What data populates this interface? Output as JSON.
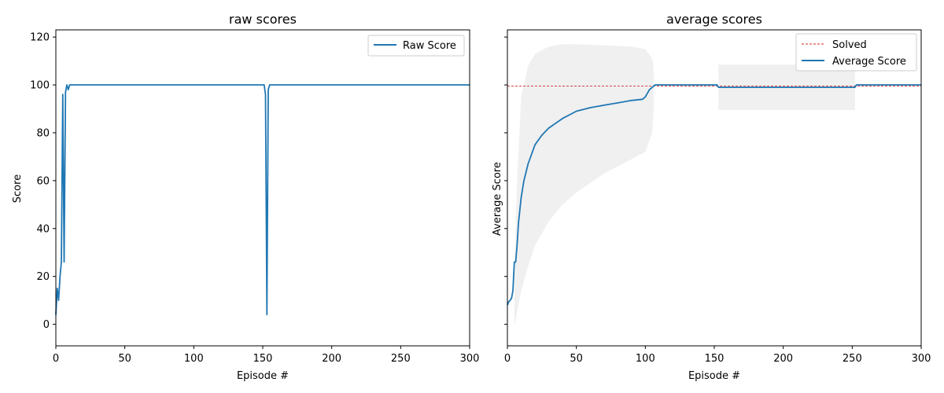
{
  "colors": {
    "line": "#1f77b4",
    "solved": "#d62728",
    "band": "#f0f0f0",
    "frame": "#000000",
    "legend_border": "#cccccc"
  },
  "chart_data": [
    {
      "type": "line",
      "title": "raw scores",
      "xlabel": "Episode #",
      "ylabel": "Score",
      "xlim": [
        0,
        300
      ],
      "ylim": [
        -9,
        123
      ],
      "xticks": [
        0,
        50,
        100,
        150,
        200,
        250,
        300
      ],
      "yticks": [
        0,
        20,
        40,
        60,
        80,
        100,
        120
      ],
      "grid": false,
      "legend_position": "top-right",
      "series": [
        {
          "name": "Raw Score",
          "x": [
            0,
            1,
            2,
            3,
            4,
            5,
            6,
            7,
            8,
            9,
            10,
            11,
            12,
            150,
            151,
            152,
            153,
            154,
            155,
            156,
            300
          ],
          "y": [
            4,
            15,
            10,
            20,
            26,
            96,
            26,
            97,
            100,
            98,
            100,
            100,
            100,
            100,
            100,
            96,
            4,
            98,
            100,
            100,
            100
          ]
        }
      ]
    },
    {
      "type": "line",
      "title": "average scores",
      "xlabel": "Episode #",
      "ylabel": "Average Score",
      "xlim": [
        0,
        300
      ],
      "ylim": [
        -9,
        123
      ],
      "xticks": [
        0,
        50,
        100,
        150,
        200,
        250,
        300
      ],
      "yticks": [
        0,
        20,
        40,
        60,
        80,
        100,
        120
      ],
      "yticklabels_visible": false,
      "grid": false,
      "legend_position": "top-right",
      "solved_level": 99.5,
      "series": [
        {
          "name": "Average Score",
          "x": [
            0,
            1,
            2,
            3,
            4,
            5,
            6,
            7,
            8,
            10,
            12,
            15,
            20,
            25,
            30,
            40,
            50,
            60,
            70,
            80,
            90,
            98,
            100,
            103,
            106,
            107,
            152,
            153,
            252,
            253,
            300
          ],
          "y": [
            8,
            9.5,
            10,
            11,
            14,
            26,
            26,
            33,
            42,
            53,
            60,
            67,
            75,
            79,
            82,
            86,
            89,
            90.5,
            91.5,
            92.5,
            93.5,
            94,
            95,
            98,
            99.5,
            100,
            100,
            99,
            99,
            100,
            100
          ]
        },
        {
          "name": "std band upper",
          "x": [
            5,
            7,
            10,
            15,
            20,
            30,
            40,
            50,
            70,
            90,
            100,
            105,
            106
          ],
          "y": [
            20,
            60,
            95,
            108,
            113,
            116,
            117,
            117,
            116.5,
            116,
            115,
            111,
            107
          ]
        },
        {
          "name": "std band lower",
          "x": [
            5,
            7,
            10,
            15,
            20,
            30,
            40,
            50,
            70,
            90,
            100,
            105,
            106
          ],
          "y": [
            -1,
            5,
            14,
            24,
            33,
            43,
            50,
            55,
            63,
            69,
            72,
            80,
            90
          ]
        },
        {
          "name": "std band 2",
          "x": [
            153,
            252
          ],
          "upper": [
            108.5,
            108.5
          ],
          "lower": [
            89.5,
            89.5
          ]
        }
      ]
    }
  ],
  "legend": {
    "raw": [
      "Raw Score"
    ],
    "average": [
      "Solved",
      "Average Score"
    ]
  }
}
